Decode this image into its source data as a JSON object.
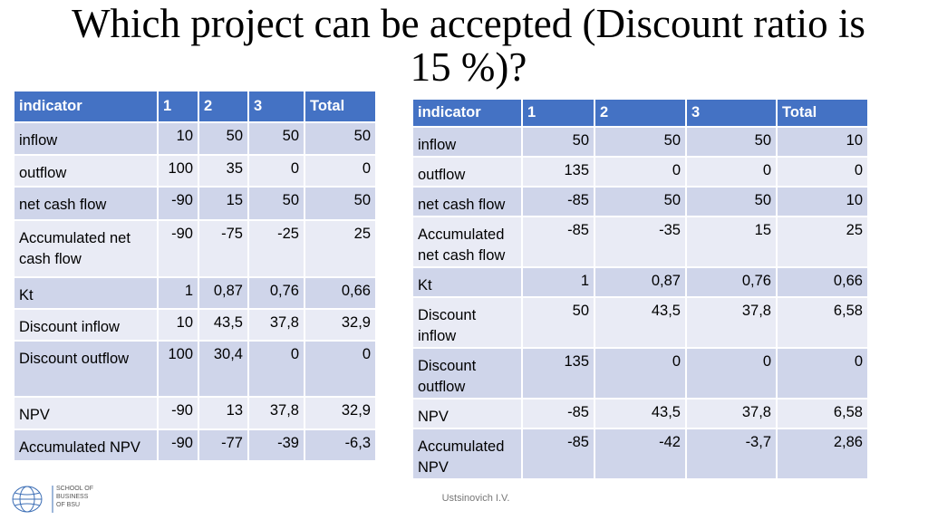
{
  "title": "Which project can be accepted (Discount ratio is 15 %)?",
  "tables": [
    {
      "header": [
        "indicator",
        "1",
        "2",
        "3",
        "Total"
      ],
      "rows": [
        [
          "inflow",
          "10",
          "50",
          "50",
          "50"
        ],
        [
          "outflow",
          "100",
          "35",
          "0",
          "0"
        ],
        [
          "net cash flow",
          "-90",
          "15",
          "50",
          "50"
        ],
        [
          "Accumulated net cash flow",
          "-90",
          "-75",
          "-25",
          "25"
        ],
        [
          "Kt",
          "1",
          "0,87",
          "0,76",
          "0,66"
        ],
        [
          "Discount  inflow",
          "10",
          "43,5",
          "37,8",
          "32,9"
        ],
        [
          "Discount  outflow",
          "100",
          "30,4",
          "0",
          "0"
        ],
        [
          "NPV",
          "-90",
          "13",
          "37,8",
          "32,9"
        ],
        [
          "Accumulated NPV",
          "-90",
          "-77",
          "-39",
          "-6,3"
        ]
      ]
    },
    {
      "header": [
        "indicator",
        "1",
        "2",
        "3",
        "Total"
      ],
      "rows": [
        [
          "inflow",
          "50",
          "50",
          "50",
          "10"
        ],
        [
          "outflow",
          "135",
          "0",
          "0",
          "0"
        ],
        [
          "net cash flow",
          "-85",
          "50",
          "50",
          "10"
        ],
        [
          "Accumulated net cash flow",
          "-85",
          "-35",
          "15",
          "25"
        ],
        [
          "Kt",
          "1",
          "0,87",
          "0,76",
          "0,66"
        ],
        [
          "Discount inflow",
          "50",
          "43,5",
          "37,8",
          "6,58"
        ],
        [
          "Discount outflow",
          "135",
          "0",
          "0",
          "0"
        ],
        [
          "NPV",
          "-85",
          "43,5",
          "37,8",
          "6,58"
        ],
        [
          "Accumulated NPV",
          "-85",
          "-42",
          "-3,7",
          "2,86"
        ]
      ]
    }
  ],
  "footer": {
    "author": "Ustsinovich I.V.",
    "logo": [
      "SCHOOL OF",
      "BUSINESS",
      "OF BSU"
    ]
  }
}
